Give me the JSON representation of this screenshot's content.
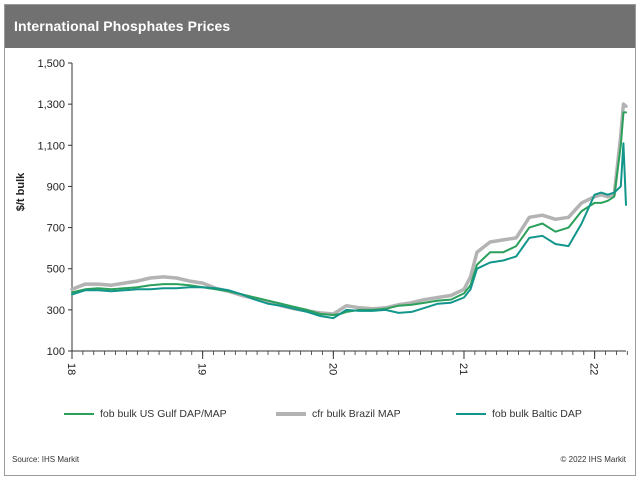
{
  "header": {
    "title": "International Phosphates  Prices"
  },
  "footer": {
    "source": "Source:  IHS Markit",
    "copyright": "© 2022  IHS Markit"
  },
  "colors": {
    "header_bg": "#717171",
    "us_gulf": "#2aa05a",
    "brazil": "#b3b3b3",
    "baltic": "#12968c"
  },
  "chart_data": {
    "type": "line",
    "title": "International Phosphates  Prices",
    "xlabel": "",
    "ylabel": "$/t bulk",
    "ylim": [
      100,
      1500
    ],
    "yticks": [
      100,
      300,
      500,
      700,
      900,
      1100,
      1300,
      1500
    ],
    "ytick_labels": [
      "100",
      "300",
      "500",
      "700",
      "900",
      "1,100",
      "1,300",
      "1,500"
    ],
    "xlim": [
      18.0,
      22.24
    ],
    "xticks": [
      18,
      19,
      20,
      21,
      22
    ],
    "xtick_labels": [
      "18",
      "19",
      "20",
      "21",
      "22"
    ],
    "grid": false,
    "legend_position": "bottom",
    "series": [
      {
        "name": "fob bulk US Gulf DAP/MAP",
        "color": "#2aa05a",
        "x": [
          18.0,
          18.1,
          18.2,
          18.3,
          18.4,
          18.5,
          18.6,
          18.7,
          18.8,
          18.9,
          19.0,
          19.1,
          19.2,
          19.3,
          19.4,
          19.5,
          19.6,
          19.7,
          19.8,
          19.9,
          20.0,
          20.05,
          20.1,
          20.2,
          20.3,
          20.4,
          20.5,
          20.6,
          20.7,
          20.8,
          20.9,
          21.0,
          21.05,
          21.1,
          21.2,
          21.3,
          21.4,
          21.5,
          21.6,
          21.7,
          21.8,
          21.9,
          22.0,
          22.05,
          22.1,
          22.15,
          22.2,
          22.22,
          22.24
        ],
        "values": [
          385,
          400,
          405,
          400,
          405,
          410,
          420,
          425,
          425,
          420,
          410,
          400,
          390,
          375,
          360,
          345,
          330,
          315,
          300,
          280,
          275,
          280,
          290,
          300,
          300,
          305,
          320,
          325,
          335,
          345,
          350,
          380,
          420,
          520,
          580,
          580,
          610,
          700,
          720,
          680,
          700,
          780,
          820,
          820,
          830,
          850,
          1100,
          1260,
          1260
        ]
      },
      {
        "name": "cfr bulk Brazil MAP",
        "color": "#b3b3b3",
        "x": [
          18.0,
          18.1,
          18.2,
          18.3,
          18.4,
          18.5,
          18.6,
          18.7,
          18.8,
          18.9,
          19.0,
          19.1,
          19.2,
          19.3,
          19.4,
          19.5,
          19.6,
          19.7,
          19.8,
          19.9,
          20.0,
          20.05,
          20.1,
          20.2,
          20.3,
          20.4,
          20.5,
          20.6,
          20.7,
          20.8,
          20.9,
          21.0,
          21.05,
          21.1,
          21.2,
          21.3,
          21.4,
          21.5,
          21.6,
          21.7,
          21.8,
          21.9,
          22.0,
          22.05,
          22.1,
          22.15,
          22.2,
          22.22,
          22.24
        ],
        "values": [
          400,
          425,
          425,
          420,
          430,
          440,
          455,
          460,
          455,
          440,
          430,
          405,
          390,
          370,
          355,
          340,
          320,
          305,
          295,
          285,
          280,
          300,
          320,
          310,
          305,
          310,
          325,
          335,
          350,
          360,
          370,
          400,
          460,
          580,
          630,
          640,
          650,
          750,
          760,
          740,
          750,
          820,
          850,
          860,
          850,
          860,
          1150,
          1300,
          1290
        ]
      },
      {
        "name": "fob bulk Baltic DAP",
        "color": "#12968c",
        "x": [
          18.0,
          18.1,
          18.2,
          18.3,
          18.4,
          18.5,
          18.6,
          18.7,
          18.8,
          18.9,
          19.0,
          19.1,
          19.2,
          19.3,
          19.4,
          19.5,
          19.6,
          19.7,
          19.8,
          19.9,
          20.0,
          20.05,
          20.1,
          20.2,
          20.3,
          20.4,
          20.5,
          20.6,
          20.7,
          20.8,
          20.9,
          21.0,
          21.05,
          21.1,
          21.2,
          21.3,
          21.4,
          21.5,
          21.6,
          21.7,
          21.8,
          21.9,
          22.0,
          22.05,
          22.1,
          22.15,
          22.2,
          22.22,
          22.24
        ],
        "values": [
          375,
          395,
          395,
          390,
          395,
          400,
          400,
          405,
          405,
          410,
          410,
          405,
          395,
          375,
          350,
          330,
          320,
          305,
          290,
          270,
          260,
          280,
          300,
          295,
          295,
          300,
          285,
          290,
          310,
          330,
          335,
          360,
          400,
          500,
          530,
          540,
          560,
          650,
          660,
          620,
          610,
          720,
          860,
          870,
          860,
          870,
          900,
          1110,
          810
        ]
      }
    ]
  }
}
